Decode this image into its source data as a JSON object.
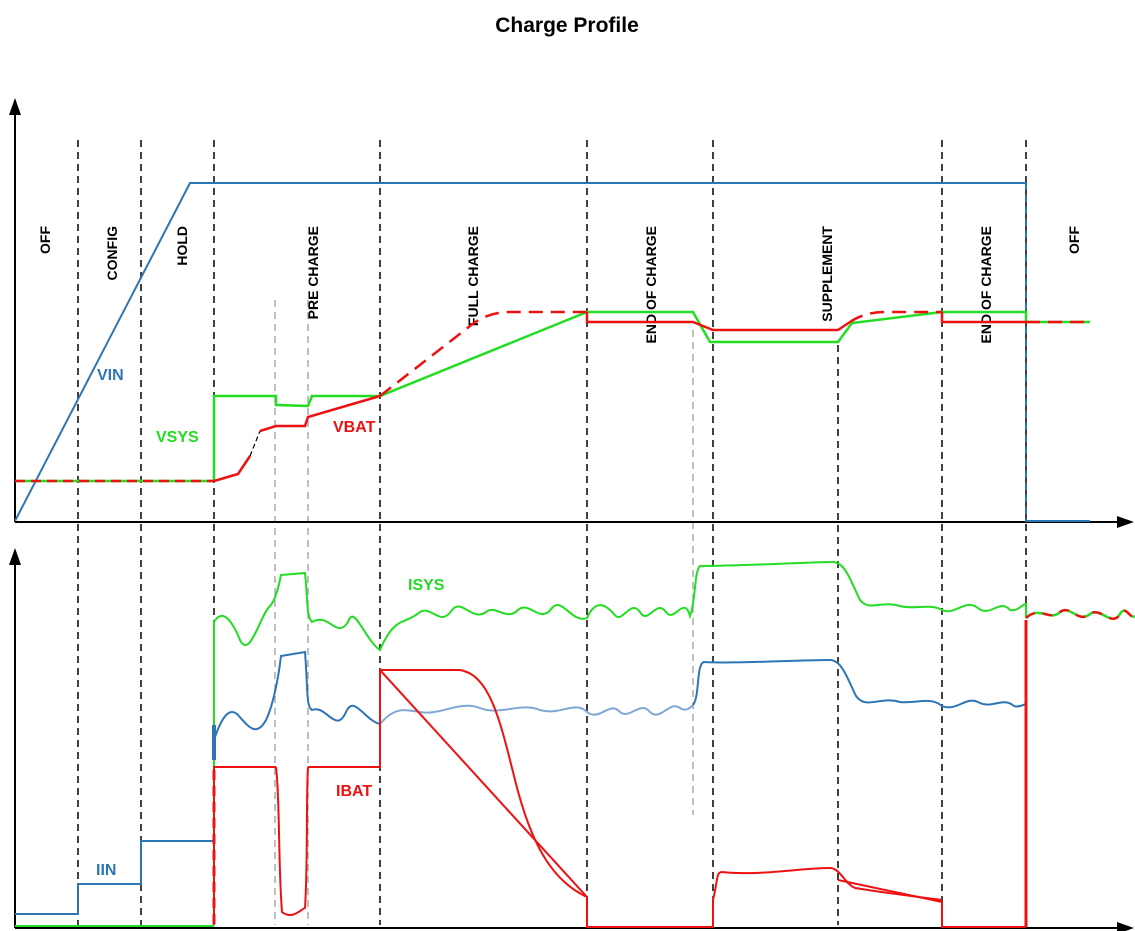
{
  "title": "Charge Profile",
  "phases": [
    "OFF",
    "CONFIG",
    "HOLD",
    "PRE CHARGE",
    "FULL CHARGE",
    "END OF CHARGE",
    "SUPPLEMENT",
    "END OF CHARGE",
    "OFF"
  ],
  "voltage_signals": {
    "vin": {
      "label": "VIN",
      "color": "#2e75b6"
    },
    "vsys": {
      "label": "VSYS",
      "color": "#22dd22"
    },
    "vbat": {
      "label": "VBAT",
      "color": "#ee1111"
    }
  },
  "current_signals": {
    "isys": {
      "label": "ISYS",
      "color": "#22dd22"
    },
    "ibat": {
      "label": "IBAT",
      "color": "#ee1111"
    },
    "iin": {
      "label": "IIN",
      "color": "#2e75b6"
    }
  },
  "colors": {
    "axis": "#000000",
    "phase_divider": "#000000",
    "guide_line": "#aaaaaa",
    "iin_light": "#7fa7d6"
  }
}
